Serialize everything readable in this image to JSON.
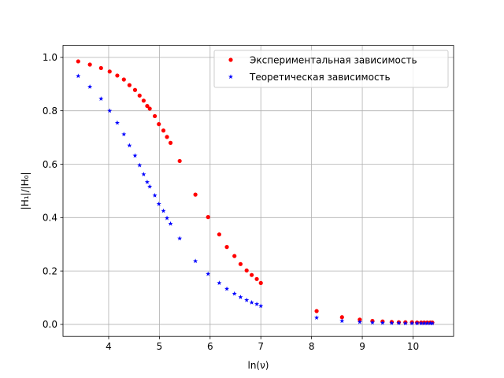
{
  "chart_data": {
    "type": "scatter",
    "xlabel": "ln(ν)",
    "ylabel": "|H₁|/|H₀|",
    "xlim": [
      3.1,
      10.8
    ],
    "ylim": [
      -0.045,
      1.045
    ],
    "xticks": [
      4,
      5,
      6,
      7,
      8,
      9,
      10
    ],
    "yticks": [
      0.0,
      0.2,
      0.4,
      0.6,
      0.8,
      1.0
    ],
    "xtick_labels": [
      "4",
      "5",
      "6",
      "7",
      "8",
      "9",
      "10"
    ],
    "ytick_labels": [
      "0.0",
      "0.2",
      "0.4",
      "0.6",
      "0.8",
      "1.0"
    ],
    "grid": true,
    "legend_position": "upper-right",
    "series": [
      {
        "name": "Экспериментальная зависимость",
        "color": "#ff0000",
        "marker": "circle",
        "x": [
          3.4,
          3.63,
          3.85,
          4.02,
          4.17,
          4.3,
          4.41,
          4.52,
          4.61,
          4.69,
          4.76,
          4.81,
          4.91,
          4.99,
          5.08,
          5.15,
          5.22,
          5.4,
          5.71,
          5.96,
          6.18,
          6.33,
          6.48,
          6.6,
          6.72,
          6.82,
          6.92,
          7.0,
          8.1,
          8.6,
          8.95,
          9.2,
          9.4,
          9.58,
          9.72,
          9.85,
          9.98,
          10.08,
          10.16,
          10.22,
          10.28,
          10.34,
          10.38
        ],
        "y": [
          0.985,
          0.973,
          0.96,
          0.947,
          0.932,
          0.917,
          0.896,
          0.878,
          0.857,
          0.838,
          0.818,
          0.808,
          0.78,
          0.75,
          0.726,
          0.702,
          0.68,
          0.612,
          0.486,
          0.402,
          0.337,
          0.29,
          0.256,
          0.226,
          0.202,
          0.185,
          0.17,
          0.155,
          0.05,
          0.027,
          0.018,
          0.013,
          0.011,
          0.009,
          0.008,
          0.008,
          0.008,
          0.007,
          0.007,
          0.007,
          0.007,
          0.007,
          0.007
        ]
      },
      {
        "name": "Теоретическая зависимость",
        "color": "#0000ff",
        "marker": "star",
        "x": [
          3.4,
          3.63,
          3.85,
          4.02,
          4.17,
          4.3,
          4.41,
          4.52,
          4.61,
          4.69,
          4.76,
          4.81,
          4.91,
          4.99,
          5.08,
          5.15,
          5.22,
          5.4,
          5.71,
          5.96,
          6.18,
          6.33,
          6.48,
          6.6,
          6.72,
          6.82,
          6.92,
          7.0,
          8.1,
          8.6,
          8.95,
          9.2,
          9.4,
          9.58,
          9.72,
          9.85,
          9.98,
          10.08,
          10.16,
          10.22,
          10.28,
          10.34,
          10.38
        ],
        "y": [
          0.93,
          0.89,
          0.845,
          0.8,
          0.755,
          0.712,
          0.67,
          0.632,
          0.596,
          0.562,
          0.533,
          0.516,
          0.483,
          0.451,
          0.425,
          0.398,
          0.377,
          0.322,
          0.237,
          0.189,
          0.155,
          0.133,
          0.115,
          0.102,
          0.091,
          0.082,
          0.076,
          0.069,
          0.025,
          0.013,
          0.009,
          0.007,
          0.006,
          0.005,
          0.005,
          0.004,
          0.004,
          0.004,
          0.004,
          0.004,
          0.004,
          0.004,
          0.004
        ]
      }
    ]
  }
}
